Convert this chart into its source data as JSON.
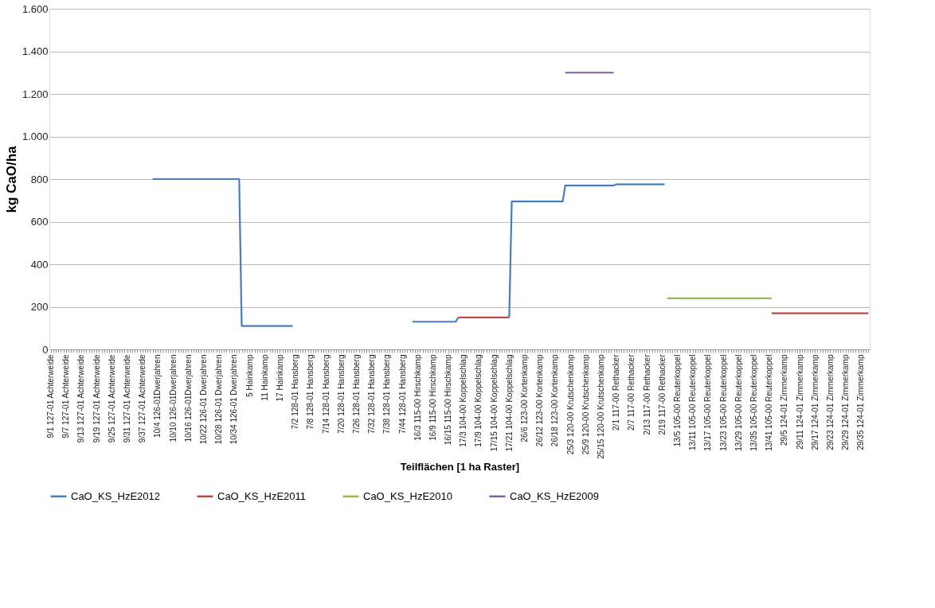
{
  "chart_data": {
    "type": "line",
    "xlabel": "Teilflächen [1 ha Raster]",
    "ylabel": "kg CaO/ha",
    "categories": [
      "9/1 127-01 Achterweide",
      null,
      null,
      null,
      null,
      null,
      "9/7 127-01 Achterweide",
      null,
      null,
      null,
      null,
      null,
      "9/13 127-01 Achterweide",
      null,
      null,
      null,
      null,
      null,
      "9/19 127-01 Achterweide",
      null,
      null,
      null,
      null,
      null,
      "9/25 127-01 Achterweide",
      null,
      null,
      null,
      null,
      null,
      "9/31 127-01 Achterweide",
      null,
      null,
      null,
      null,
      null,
      "9/37 127-01 Achterweide",
      null,
      null,
      null,
      null,
      null,
      "10/4 126-01Dwerjahren",
      null,
      null,
      null,
      null,
      null,
      "10/10 126-01Dwerjahren",
      null,
      null,
      null,
      null,
      null,
      "10/16 126-01Dwerjahren",
      null,
      null,
      null,
      null,
      null,
      "10/22 126-01 Dwerjahren",
      null,
      null,
      null,
      null,
      null,
      "10/28 126-01 Dwerjahren",
      null,
      null,
      null,
      null,
      null,
      "10/34 126-01 Dwerjahren",
      null,
      null,
      null,
      null,
      null,
      "5 Hainkamp",
      null,
      null,
      null,
      null,
      null,
      "11 Hainkamp",
      null,
      null,
      null,
      null,
      null,
      "17 Hainkamp",
      null,
      null,
      null,
      null,
      null,
      "7/2 128-01 Hansberg",
      null,
      null,
      null,
      null,
      null,
      "7/8 128-01 Hansberg",
      null,
      null,
      null,
      null,
      null,
      "7/14 128-01 Hansberg",
      null,
      null,
      null,
      null,
      null,
      "7/20 128-01 Hansberg",
      null,
      null,
      null,
      null,
      null,
      "7/26 128-01 Hansberg",
      null,
      null,
      null,
      null,
      null,
      "7/32 128-01 Hansberg",
      null,
      null,
      null,
      null,
      null,
      "7/38 128-01 Hansberg",
      null,
      null,
      null,
      null,
      null,
      "7/44 128-01 Hansberg",
      null,
      null,
      null,
      null,
      null,
      "16/3 115-00 Hirschkamp",
      null,
      null,
      null,
      null,
      null,
      "16/9 115-00 Hirschkamp",
      null,
      null,
      null,
      null,
      null,
      "16/15 115-00 Hirschkamp",
      null,
      null,
      null,
      null,
      null,
      "17/3 104-00 Koppelschlag",
      null,
      null,
      null,
      null,
      null,
      "17/9 104-00 Koppelschlag",
      null,
      null,
      null,
      null,
      null,
      "17/15 104-00 Koppelschlag",
      null,
      null,
      null,
      null,
      null,
      "17/21 104-00 Koppelschlag",
      null,
      null,
      null,
      null,
      null,
      "26/6 123-00 Kortenkamp",
      null,
      null,
      null,
      null,
      null,
      "26/12 123-00 Kortenkamp",
      null,
      null,
      null,
      null,
      null,
      "26/18 123-00 Kortenkamp",
      null,
      null,
      null,
      null,
      null,
      "25/3 120-00 Krutschenkamp",
      null,
      null,
      null,
      null,
      null,
      "25/9 120-00 Krutschenkamp",
      null,
      null,
      null,
      null,
      null,
      "25/15 120-00 Krutschenkamp",
      null,
      null,
      null,
      null,
      null,
      "2/1 117-00 Rethacker",
      null,
      null,
      null,
      null,
      null,
      "2/7 117-00 Rethacker",
      null,
      null,
      null,
      null,
      null,
      "2/13 117-00 Rethacker",
      null,
      null,
      null,
      null,
      null,
      "2/19 117-00 Rethacker",
      null,
      null,
      null,
      null,
      null,
      "13/5 105-00 Reuterkoppel",
      null,
      null,
      null,
      null,
      null,
      "13/11 105-00 Reuterkoppel",
      null,
      null,
      null,
      null,
      null,
      "13/17 105-00 Reuterkoppel",
      null,
      null,
      null,
      null,
      null,
      "13/23 105-00 Reuterkoppel",
      null,
      null,
      null,
      null,
      null,
      "13/29 105-00 Reuterkoppel",
      null,
      null,
      null,
      null,
      null,
      "13/35 105-00 Reuterkoppel",
      null,
      null,
      null,
      null,
      null,
      "13/41 105-00 Reuterkoppel",
      null,
      null,
      null,
      null,
      null,
      "29/5 124-01 Zimmerkamp",
      null,
      null,
      null,
      null,
      null,
      "29/11 124-01 Zimmerkamp",
      null,
      null,
      null,
      null,
      null,
      "29/17 124-01 Zimmerkamp",
      null,
      null,
      null,
      null,
      null,
      "29/23 124-01 Zimmerkamp",
      null,
      null,
      null,
      null,
      null,
      "29/29 124-01 Zimmerkamp",
      null,
      null,
      null,
      null,
      null,
      "29/35 124-01 Zimmerkamp",
      null,
      null,
      null
    ],
    "series": [
      {
        "name": "CaO_KS_HzE2012",
        "color": "#4a7ebb",
        "values": [
          null,
          null,
          null,
          null,
          null,
          null,
          null,
          null,
          null,
          null,
          null,
          null,
          null,
          null,
          null,
          null,
          null,
          null,
          null,
          null,
          null,
          null,
          null,
          null,
          null,
          null,
          null,
          null,
          null,
          null,
          null,
          null,
          null,
          null,
          null,
          null,
          null,
          null,
          null,
          null,
          800,
          800,
          800,
          800,
          800,
          800,
          800,
          800,
          800,
          800,
          800,
          800,
          800,
          800,
          800,
          800,
          800,
          800,
          800,
          800,
          800,
          800,
          800,
          800,
          800,
          800,
          800,
          800,
          800,
          800,
          800,
          800,
          800,
          800,
          800,
          110,
          110,
          110,
          110,
          110,
          110,
          110,
          110,
          110,
          110,
          110,
          110,
          110,
          110,
          110,
          110,
          110,
          110,
          110,
          110,
          110,
          null,
          null,
          null,
          null,
          null,
          null,
          null,
          null,
          null,
          null,
          null,
          null,
          null,
          null,
          null,
          null,
          null,
          null,
          null,
          null,
          null,
          null,
          null,
          null,
          null,
          null,
          null,
          null,
          null,
          null,
          null,
          null,
          null,
          null,
          null,
          null,
          null,
          null,
          null,
          null,
          null,
          null,
          null,
          null,
          null,
          null,
          130,
          130,
          130,
          130,
          130,
          130,
          130,
          130,
          130,
          130,
          130,
          130,
          130,
          130,
          130,
          130,
          130,
          130,
          150,
          null,
          null,
          null,
          null,
          null,
          null,
          null,
          null,
          null,
          null,
          null,
          null,
          null,
          null,
          null,
          null,
          null,
          null,
          null,
          150,
          695,
          695,
          695,
          695,
          695,
          695,
          695,
          695,
          695,
          695,
          695,
          695,
          695,
          695,
          695,
          695,
          695,
          695,
          695,
          695,
          695,
          770,
          770,
          770,
          770,
          770,
          770,
          770,
          770,
          770,
          770,
          770,
          770,
          770,
          770,
          770,
          770,
          770,
          770,
          770,
          770,
          775,
          775,
          775,
          775,
          775,
          775,
          775,
          775,
          775,
          775,
          775,
          775,
          775,
          775,
          775,
          775,
          775,
          775,
          775,
          775,
          null,
          null,
          null,
          null,
          null,
          null,
          null,
          null,
          null,
          null,
          null,
          null,
          null,
          null,
          null,
          null,
          null,
          null,
          null,
          null,
          null,
          null,
          null,
          null,
          null,
          null,
          null,
          null,
          null,
          null,
          null,
          null,
          null,
          null,
          null,
          null,
          null,
          null,
          null,
          null,
          null,
          null,
          null,
          null,
          null,
          null,
          null,
          null,
          null,
          null,
          null,
          null,
          null,
          null,
          null,
          null,
          null,
          null,
          null,
          null,
          null,
          null,
          null,
          null,
          null,
          null,
          null,
          null,
          null,
          null,
          null,
          null,
          null,
          null,
          null,
          null,
          null,
          null,
          null,
          null
        ]
      },
      {
        "name": "CaO_KS_HzE2011",
        "color": "#be4b48",
        "values": [
          null,
          null,
          null,
          null,
          null,
          null,
          null,
          null,
          null,
          null,
          null,
          null,
          null,
          null,
          null,
          null,
          null,
          null,
          null,
          null,
          null,
          null,
          null,
          null,
          null,
          null,
          null,
          null,
          null,
          null,
          null,
          null,
          null,
          null,
          null,
          null,
          null,
          null,
          null,
          null,
          null,
          null,
          null,
          null,
          null,
          null,
          null,
          null,
          null,
          null,
          null,
          null,
          null,
          null,
          null,
          null,
          null,
          null,
          null,
          null,
          null,
          null,
          null,
          null,
          null,
          null,
          null,
          null,
          null,
          null,
          null,
          null,
          null,
          null,
          null,
          null,
          null,
          null,
          null,
          null,
          null,
          null,
          null,
          null,
          null,
          null,
          null,
          null,
          null,
          null,
          null,
          null,
          null,
          null,
          null,
          null,
          null,
          null,
          null,
          null,
          null,
          null,
          null,
          null,
          null,
          null,
          null,
          null,
          null,
          null,
          null,
          null,
          null,
          null,
          null,
          null,
          null,
          null,
          null,
          null,
          null,
          null,
          null,
          null,
          null,
          null,
          null,
          null,
          null,
          null,
          null,
          null,
          null,
          null,
          null,
          null,
          null,
          null,
          null,
          null,
          null,
          null,
          null,
          null,
          null,
          null,
          null,
          null,
          null,
          null,
          null,
          null,
          null,
          null,
          null,
          null,
          null,
          null,
          null,
          null,
          150,
          150,
          150,
          150,
          150,
          150,
          150,
          150,
          150,
          150,
          150,
          150,
          150,
          150,
          150,
          150,
          150,
          150,
          150,
          150,
          150,
          null,
          null,
          null,
          null,
          null,
          null,
          null,
          null,
          null,
          null,
          null,
          null,
          null,
          null,
          null,
          null,
          null,
          null,
          null,
          null,
          null,
          null,
          null,
          null,
          null,
          null,
          null,
          null,
          null,
          null,
          null,
          null,
          null,
          null,
          null,
          null,
          null,
          null,
          null,
          null,
          null,
          null,
          null,
          null,
          null,
          null,
          null,
          null,
          null,
          null,
          null,
          null,
          null,
          null,
          null,
          null,
          null,
          null,
          null,
          null,
          null,
          null,
          null,
          null,
          null,
          null,
          null,
          null,
          null,
          null,
          null,
          null,
          null,
          null,
          null,
          null,
          null,
          null,
          null,
          null,
          null,
          null,
          null,
          null,
          null,
          null,
          null,
          null,
          null,
          null,
          null,
          null,
          null,
          null,
          null,
          null,
          null,
          null,
          null,
          null,
          null,
          null,
          170,
          170,
          170,
          170,
          170,
          170,
          170,
          170,
          170,
          170,
          170,
          170,
          170,
          170,
          170,
          170,
          170,
          170,
          170,
          170,
          170,
          170,
          170,
          170,
          170,
          170,
          170,
          170,
          170,
          170,
          170,
          170,
          170,
          170,
          170,
          170,
          170,
          170,
          170
        ]
      },
      {
        "name": "CaO_KS_HzE2010",
        "color": "#98b954",
        "values": [
          null,
          null,
          null,
          null,
          null,
          null,
          null,
          null,
          null,
          null,
          null,
          null,
          null,
          null,
          null,
          null,
          null,
          null,
          null,
          null,
          null,
          null,
          null,
          null,
          null,
          null,
          null,
          null,
          null,
          null,
          null,
          null,
          null,
          null,
          null,
          null,
          null,
          null,
          null,
          null,
          null,
          null,
          null,
          null,
          null,
          null,
          null,
          null,
          null,
          null,
          null,
          null,
          null,
          null,
          null,
          null,
          null,
          null,
          null,
          null,
          null,
          null,
          null,
          null,
          null,
          null,
          null,
          null,
          null,
          null,
          null,
          null,
          null,
          null,
          null,
          null,
          null,
          null,
          null,
          null,
          null,
          null,
          null,
          null,
          null,
          null,
          null,
          null,
          null,
          null,
          null,
          null,
          null,
          null,
          null,
          null,
          null,
          null,
          null,
          null,
          null,
          null,
          null,
          null,
          null,
          null,
          null,
          null,
          null,
          null,
          null,
          null,
          null,
          null,
          null,
          null,
          null,
          null,
          null,
          null,
          null,
          null,
          null,
          null,
          null,
          null,
          null,
          null,
          null,
          null,
          null,
          null,
          null,
          null,
          null,
          null,
          null,
          null,
          null,
          null,
          null,
          null,
          null,
          null,
          null,
          null,
          null,
          null,
          null,
          null,
          null,
          null,
          null,
          null,
          null,
          null,
          null,
          null,
          null,
          null,
          null,
          null,
          null,
          null,
          null,
          null,
          null,
          null,
          null,
          null,
          null,
          null,
          null,
          null,
          null,
          null,
          null,
          null,
          null,
          null,
          null,
          null,
          null,
          null,
          null,
          null,
          null,
          null,
          null,
          null,
          null,
          null,
          null,
          null,
          null,
          null,
          null,
          null,
          null,
          null,
          null,
          null,
          null,
          null,
          null,
          null,
          null,
          null,
          null,
          null,
          null,
          null,
          null,
          null,
          null,
          null,
          null,
          null,
          null,
          null,
          null,
          null,
          null,
          null,
          null,
          null,
          null,
          null,
          null,
          null,
          null,
          null,
          null,
          null,
          null,
          null,
          null,
          null,
          null,
          null,
          null,
          null,
          240,
          240,
          240,
          240,
          240,
          240,
          240,
          240,
          240,
          240,
          240,
          240,
          240,
          240,
          240,
          240,
          240,
          240,
          240,
          240,
          240,
          240,
          240,
          240,
          240,
          240,
          240,
          240,
          240,
          240,
          240,
          240,
          240,
          240,
          240,
          240,
          240,
          240,
          240,
          240,
          240,
          240,
          null,
          null,
          null,
          null,
          null,
          null,
          null,
          null,
          null,
          null,
          null,
          null,
          null,
          null,
          null,
          null,
          null,
          null,
          null,
          null,
          null,
          null,
          null,
          null,
          null,
          null,
          null,
          null,
          null,
          null,
          null,
          null,
          null,
          null,
          null,
          null,
          null,
          null
        ]
      },
      {
        "name": "CaO_KS_HzE2009",
        "color": "#7d60a0",
        "values": [
          null,
          null,
          null,
          null,
          null,
          null,
          null,
          null,
          null,
          null,
          null,
          null,
          null,
          null,
          null,
          null,
          null,
          null,
          null,
          null,
          null,
          null,
          null,
          null,
          null,
          null,
          null,
          null,
          null,
          null,
          null,
          null,
          null,
          null,
          null,
          null,
          null,
          null,
          null,
          null,
          null,
          null,
          null,
          null,
          null,
          null,
          null,
          null,
          null,
          null,
          null,
          null,
          null,
          null,
          null,
          null,
          null,
          null,
          null,
          null,
          null,
          null,
          null,
          null,
          null,
          null,
          null,
          null,
          null,
          null,
          null,
          null,
          null,
          null,
          null,
          null,
          null,
          null,
          null,
          null,
          null,
          null,
          null,
          null,
          null,
          null,
          null,
          null,
          null,
          null,
          null,
          null,
          null,
          null,
          null,
          null,
          null,
          null,
          null,
          null,
          null,
          null,
          null,
          null,
          null,
          null,
          null,
          null,
          null,
          null,
          null,
          null,
          null,
          null,
          null,
          null,
          null,
          null,
          null,
          null,
          null,
          null,
          null,
          null,
          null,
          null,
          null,
          null,
          null,
          null,
          null,
          null,
          null,
          null,
          null,
          null,
          null,
          null,
          null,
          null,
          null,
          null,
          null,
          null,
          null,
          null,
          null,
          null,
          null,
          null,
          null,
          null,
          null,
          null,
          null,
          null,
          null,
          null,
          null,
          null,
          null,
          null,
          null,
          null,
          null,
          null,
          null,
          null,
          null,
          null,
          null,
          null,
          null,
          null,
          null,
          null,
          null,
          null,
          null,
          null,
          null,
          null,
          null,
          null,
          null,
          null,
          null,
          null,
          null,
          null,
          null,
          null,
          null,
          null,
          null,
          null,
          null,
          null,
          null,
          null,
          null,
          null,
          1300,
          1300,
          1300,
          1300,
          1300,
          1300,
          1300,
          1300,
          1300,
          1300,
          1300,
          1300,
          1300,
          1300,
          1300,
          1300,
          1300,
          1300,
          1300,
          1300,
          null,
          null,
          null,
          null,
          null,
          null,
          null,
          null,
          null,
          null,
          null,
          null,
          null,
          null,
          null,
          null,
          null,
          null,
          null,
          null,
          null,
          null,
          null,
          null,
          null,
          null,
          null,
          null,
          null,
          null,
          null,
          null,
          null,
          null,
          null,
          null,
          null,
          null,
          null,
          null,
          null,
          null,
          null,
          null,
          null,
          null,
          null,
          null,
          null,
          null,
          null,
          null,
          null,
          null,
          null,
          null,
          null,
          null,
          null,
          null,
          null,
          null,
          null,
          null,
          null,
          null,
          null,
          null,
          null,
          null,
          null,
          null,
          null,
          null,
          null,
          null,
          null,
          null,
          null,
          null,
          null,
          null,
          null,
          null,
          null,
          null,
          null,
          null,
          null,
          null,
          null,
          null,
          null,
          null,
          null,
          null,
          null,
          null,
          null,
          null
        ]
      }
    ],
    "ylim": [
      0,
      1600
    ],
    "yticks": [
      0,
      200,
      400,
      600,
      800,
      {
        "value": 1000,
        "label": "1.000"
      },
      {
        "value": 1200,
        "label": "1.200"
      },
      {
        "value": 1400,
        "label": "1.400"
      },
      {
        "value": 1600,
        "label": "1.600"
      }
    ],
    "grid": "y",
    "legend": "bottom",
    "line_style": "solid"
  }
}
